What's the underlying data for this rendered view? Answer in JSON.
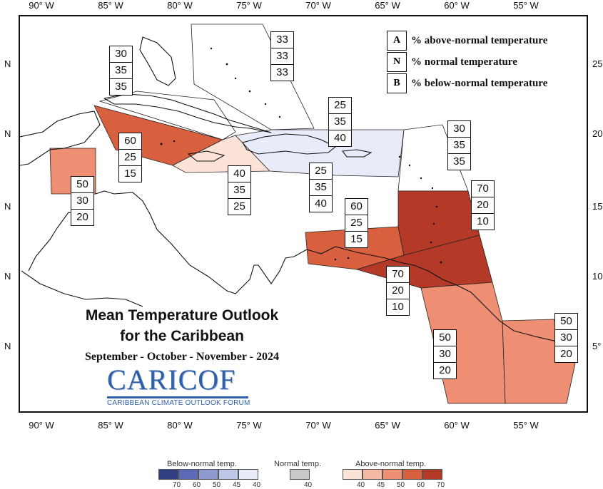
{
  "map": {
    "title": "Mean Temperature Outlook for the Caribbean",
    "title_line1": "Mean Temperature Outlook",
    "title_line2": "for the Caribbean",
    "season": "September - October - November - 2024",
    "longitude_ticks": [
      "90° W",
      "85° W",
      "80° W",
      "75° W",
      "70° W",
      "65° W",
      "60° W",
      "55° W"
    ],
    "latitude_ticks_left": [
      "N",
      "N",
      "N",
      "N",
      "N"
    ],
    "latitude_ticks_right": [
      "25",
      "20",
      "15",
      "10",
      "5°"
    ],
    "key": [
      {
        "letter": "A",
        "text": "% above-normal temperature"
      },
      {
        "letter": "N",
        "text": "% normal temperature"
      },
      {
        "letter": "B",
        "text": "% below-normal temperature"
      }
    ]
  },
  "regions": [
    {
      "name": "bahamas",
      "above": "33",
      "normal": "33",
      "below": "33",
      "fill": "#ffffff"
    },
    {
      "name": "cuba-west",
      "above": "30",
      "normal": "35",
      "below": "35",
      "fill": "#ffffff"
    },
    {
      "name": "cuba-cayman",
      "above": "60",
      "normal": "25",
      "below": "15",
      "fill": "#d9603f"
    },
    {
      "name": "jamaica",
      "above": "40",
      "normal": "35",
      "below": "25",
      "fill": "#fbe3d8"
    },
    {
      "name": "hispaniola-puerto-rico",
      "above": "25",
      "normal": "35",
      "below": "40",
      "fill": "#e8ecf8"
    },
    {
      "name": "hispaniola-north",
      "above": "25",
      "normal": "35",
      "below": "40",
      "fill": "#e8ecf8"
    },
    {
      "name": "leeward-islands",
      "above": "30",
      "normal": "35",
      "below": "35",
      "fill": "#ffffff"
    },
    {
      "name": "belize",
      "above": "50",
      "normal": "30",
      "below": "20",
      "fill": "#ee8f74"
    },
    {
      "name": "aruba-curacao",
      "above": "60",
      "normal": "25",
      "below": "15",
      "fill": "#d9603f"
    },
    {
      "name": "windward-islands",
      "above": "70",
      "normal": "20",
      "below": "10",
      "fill": "#b53927"
    },
    {
      "name": "trinidad-tobago",
      "above": "70",
      "normal": "20",
      "below": "10",
      "fill": "#b53927"
    },
    {
      "name": "guyana",
      "above": "50",
      "normal": "30",
      "below": "20",
      "fill": "#ee8f74"
    },
    {
      "name": "suriname-french-guiana",
      "above": "50",
      "normal": "30",
      "below": "20",
      "fill": "#ee8f74"
    }
  ],
  "color_legend": {
    "below_label": "Below-normal temp.",
    "normal_label": "Normal temp.",
    "above_label": "Above-normal temp.",
    "below": [
      {
        "value": "70",
        "color": "#2f3f82"
      },
      {
        "value": "60",
        "color": "#5b6bb8"
      },
      {
        "value": "50",
        "color": "#8e99d0"
      },
      {
        "value": "45",
        "color": "#c0c8e8"
      },
      {
        "value": "40",
        "color": "#e8ecf8"
      }
    ],
    "normal": [
      {
        "value": "40",
        "color": "#c8c8c8"
      }
    ],
    "above": [
      {
        "value": "40",
        "color": "#fbe3d8"
      },
      {
        "value": "45",
        "color": "#f6b9a4"
      },
      {
        "value": "50",
        "color": "#ee8f74"
      },
      {
        "value": "60",
        "color": "#d9603f"
      },
      {
        "value": "70",
        "color": "#b53927"
      }
    ]
  },
  "branding": {
    "logo_text": "CARICOF",
    "logo_subtitle": "CARIBBEAN CLIMATE OUTLOOK FORUM"
  }
}
